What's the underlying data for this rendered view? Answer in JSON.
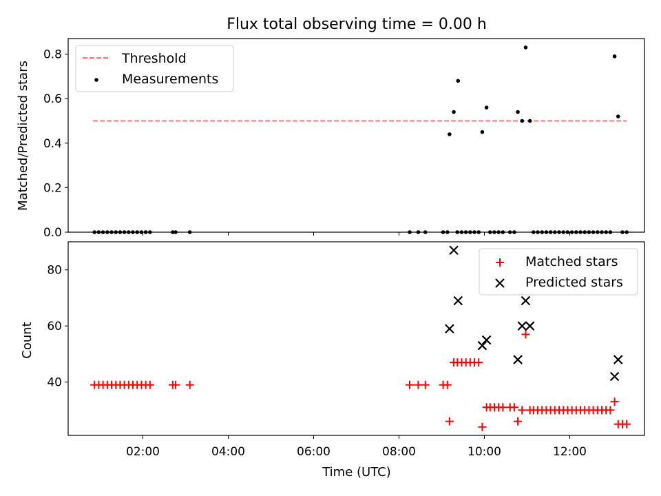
{
  "chart_data": [
    {
      "type": "scatter",
      "title": "Flux total observing time = 0.00 h",
      "ylabel": "Matched/Predicted stars",
      "xlim": [
        "00:15",
        "13:45"
      ],
      "ylim": [
        0,
        0.87
      ],
      "yticks": [
        "0.0",
        "0.2",
        "0.4",
        "0.6",
        "0.8"
      ],
      "yticks_values": [
        0.0,
        0.2,
        0.4,
        0.6,
        0.8
      ],
      "legend_position": "upper-left",
      "threshold": {
        "name": "Threshold",
        "value": 0.5,
        "x_range": [
          "00:50",
          "13:20"
        ],
        "color": "#ff7070",
        "style": "dashed"
      },
      "series": [
        {
          "name": "Measurements",
          "marker": "dot",
          "color": "#000000",
          "points": [
            [
              "00:52",
              0
            ],
            [
              "00:58",
              0
            ],
            [
              "01:04",
              0
            ],
            [
              "01:10",
              0
            ],
            [
              "01:16",
              0
            ],
            [
              "01:22",
              0
            ],
            [
              "01:28",
              0
            ],
            [
              "01:34",
              0
            ],
            [
              "01:40",
              0
            ],
            [
              "01:46",
              0
            ],
            [
              "01:52",
              0
            ],
            [
              "01:58",
              0
            ],
            [
              "02:04",
              0
            ],
            [
              "02:10",
              0
            ],
            [
              "02:42",
              0
            ],
            [
              "02:46",
              0
            ],
            [
              "03:06",
              0
            ],
            [
              "08:15",
              0
            ],
            [
              "08:27",
              0
            ],
            [
              "08:37",
              0
            ],
            [
              "09:02",
              0
            ],
            [
              "09:08",
              0
            ],
            [
              "09:11",
              0.44
            ],
            [
              "09:17",
              0.54
            ],
            [
              "09:22",
              0
            ],
            [
              "09:23",
              0.68
            ],
            [
              "09:28",
              0
            ],
            [
              "09:34",
              0
            ],
            [
              "09:40",
              0
            ],
            [
              "09:46",
              0
            ],
            [
              "09:52",
              0
            ],
            [
              "09:57",
              0.45
            ],
            [
              "10:03",
              0.56
            ],
            [
              "10:08",
              0
            ],
            [
              "10:14",
              0
            ],
            [
              "10:20",
              0
            ],
            [
              "10:26",
              0
            ],
            [
              "10:36",
              0
            ],
            [
              "10:42",
              0
            ],
            [
              "10:47",
              0.54
            ],
            [
              "10:53",
              0.5
            ],
            [
              "10:58",
              0.83
            ],
            [
              "11:04",
              0.5
            ],
            [
              "11:09",
              0
            ],
            [
              "11:15",
              0
            ],
            [
              "11:21",
              0
            ],
            [
              "11:27",
              0
            ],
            [
              "11:33",
              0
            ],
            [
              "11:39",
              0
            ],
            [
              "11:45",
              0
            ],
            [
              "11:51",
              0
            ],
            [
              "11:57",
              0
            ],
            [
              "12:03",
              0
            ],
            [
              "12:09",
              0
            ],
            [
              "12:15",
              0
            ],
            [
              "12:21",
              0
            ],
            [
              "12:27",
              0
            ],
            [
              "12:33",
              0
            ],
            [
              "12:39",
              0
            ],
            [
              "12:45",
              0
            ],
            [
              "12:51",
              0
            ],
            [
              "12:57",
              0
            ],
            [
              "13:03",
              0.79
            ],
            [
              "13:08",
              0.52
            ],
            [
              "13:14",
              0
            ],
            [
              "13:20",
              0
            ]
          ]
        }
      ]
    },
    {
      "type": "scatter",
      "xlabel": "Time (UTC)",
      "ylabel": "Count",
      "xlim": [
        "00:15",
        "13:45"
      ],
      "ylim": [
        21,
        90
      ],
      "xticks": [
        "02:00",
        "04:00",
        "06:00",
        "08:00",
        "10:00",
        "12:00"
      ],
      "yticks": [
        "40",
        "60",
        "80"
      ],
      "yticks_values": [
        40,
        60,
        80
      ],
      "legend_position": "upper-right",
      "series": [
        {
          "name": "Matched stars",
          "marker": "plus",
          "color": "#ff0000",
          "points": [
            [
              "00:52",
              39
            ],
            [
              "00:58",
              39
            ],
            [
              "01:04",
              39
            ],
            [
              "01:10",
              39
            ],
            [
              "01:16",
              39
            ],
            [
              "01:22",
              39
            ],
            [
              "01:28",
              39
            ],
            [
              "01:34",
              39
            ],
            [
              "01:40",
              39
            ],
            [
              "01:46",
              39
            ],
            [
              "01:52",
              39
            ],
            [
              "01:58",
              39
            ],
            [
              "02:04",
              39
            ],
            [
              "02:10",
              39
            ],
            [
              "02:42",
              39
            ],
            [
              "02:46",
              39
            ],
            [
              "03:06",
              39
            ],
            [
              "08:15",
              39
            ],
            [
              "08:27",
              39
            ],
            [
              "08:37",
              39
            ],
            [
              "09:02",
              39
            ],
            [
              "09:08",
              39
            ],
            [
              "09:11",
              26
            ],
            [
              "09:17",
              47
            ],
            [
              "09:22",
              47
            ],
            [
              "09:28",
              47
            ],
            [
              "09:34",
              47
            ],
            [
              "09:40",
              47
            ],
            [
              "09:46",
              47
            ],
            [
              "09:52",
              47
            ],
            [
              "09:57",
              24
            ],
            [
              "10:03",
              31
            ],
            [
              "10:08",
              31
            ],
            [
              "10:14",
              31
            ],
            [
              "10:20",
              31
            ],
            [
              "10:26",
              31
            ],
            [
              "10:36",
              31
            ],
            [
              "10:42",
              31
            ],
            [
              "10:47",
              26
            ],
            [
              "10:53",
              30
            ],
            [
              "10:58",
              57
            ],
            [
              "11:04",
              30
            ],
            [
              "11:09",
              30
            ],
            [
              "11:15",
              30
            ],
            [
              "11:21",
              30
            ],
            [
              "11:27",
              30
            ],
            [
              "11:33",
              30
            ],
            [
              "11:39",
              30
            ],
            [
              "11:45",
              30
            ],
            [
              "11:51",
              30
            ],
            [
              "11:57",
              30
            ],
            [
              "12:03",
              30
            ],
            [
              "12:09",
              30
            ],
            [
              "12:15",
              30
            ],
            [
              "12:21",
              30
            ],
            [
              "12:27",
              30
            ],
            [
              "12:33",
              30
            ],
            [
              "12:39",
              30
            ],
            [
              "12:45",
              30
            ],
            [
              "12:51",
              30
            ],
            [
              "12:57",
              30
            ],
            [
              "13:03",
              33
            ],
            [
              "13:08",
              25
            ],
            [
              "13:14",
              25
            ],
            [
              "13:20",
              25
            ]
          ]
        },
        {
          "name": "Predicted stars",
          "marker": "x",
          "color": "#000000",
          "points": [
            [
              "09:11",
              59
            ],
            [
              "09:17",
              87
            ],
            [
              "09:23",
              69
            ],
            [
              "09:57",
              53
            ],
            [
              "10:03",
              55
            ],
            [
              "10:47",
              48
            ],
            [
              "10:53",
              60
            ],
            [
              "10:58",
              69
            ],
            [
              "11:04",
              60
            ],
            [
              "13:03",
              42
            ],
            [
              "13:08",
              48
            ]
          ]
        }
      ]
    }
  ]
}
